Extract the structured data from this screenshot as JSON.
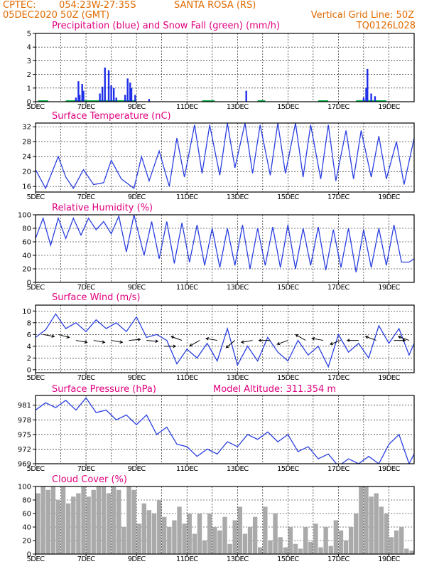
{
  "header": {
    "source": "CPTEC:",
    "location": "054:23W-27:35S",
    "station": "SANTA ROSA (RS)",
    "run": "05DEC2020 50Z (GMT)",
    "grid_note": "Vertical Grid Line: 50Z",
    "code": "TQ0126L028"
  },
  "colors": {
    "header": "#e06a00",
    "title": "#e0007f",
    "series": "#2a3fe0",
    "precip": "#1f2fe8",
    "snow": "#00b040",
    "cloud": "#aaaaaa"
  },
  "chart_data": [
    {
      "id": "precip",
      "type": "bar",
      "title": "Precipitation (blue) and Snow Fall (green) (mm/h)",
      "x_unit": "day (Dec 2020)",
      "xlim": [
        5,
        20
      ],
      "x_ticks": [
        "5DEC",
        "7DEC",
        "9DEC",
        "11DEC",
        "13DEC",
        "15DEC",
        "17DEC",
        "19DEC"
      ],
      "ylim": [
        0,
        5
      ],
      "y_ticks": [
        "0",
        "1",
        "2",
        "3",
        "4",
        "5"
      ],
      "grid": true,
      "series": [
        {
          "name": "Precipitation",
          "x": [
            6.6,
            6.7,
            6.75,
            6.85,
            6.9,
            7.55,
            7.65,
            7.75,
            7.9,
            8.0,
            8.1,
            8.2,
            8.55,
            8.65,
            8.75,
            8.8,
            8.95,
            9.5,
            13.35,
            18.0,
            18.1,
            18.15,
            18.3,
            18.45
          ],
          "values": [
            0.3,
            1.5,
            0.5,
            1.3,
            0.8,
            0.6,
            1.1,
            2.5,
            2.3,
            1.2,
            1.0,
            0.3,
            0.5,
            1.7,
            1.4,
            1.0,
            0.5,
            0.2,
            0.8,
            0.3,
            1.0,
            2.4,
            0.6,
            0.4
          ]
        },
        {
          "name": "Snow Fall",
          "x": [],
          "values": []
        }
      ]
    },
    {
      "id": "temperature",
      "type": "line",
      "title": "Surface Temperature (nC)",
      "xlim": [
        5,
        20
      ],
      "x_ticks": [
        "5DEC",
        "7DEC",
        "9DEC",
        "11DEC",
        "13DEC",
        "15DEC",
        "17DEC",
        "19DEC"
      ],
      "ylim": [
        14.5,
        33
      ],
      "y_ticks": [
        "16",
        "20",
        "24",
        "28",
        "32"
      ],
      "y_tick_values": [
        16,
        20,
        24,
        28,
        32
      ],
      "grid": true,
      "x": [
        5.0,
        5.4,
        5.9,
        6.2,
        6.5,
        6.9,
        7.3,
        7.7,
        8.0,
        8.4,
        8.9,
        9.2,
        9.5,
        9.9,
        10.3,
        10.6,
        10.9,
        11.3,
        11.6,
        11.9,
        12.3,
        12.6,
        12.9,
        13.3,
        13.6,
        13.9,
        14.3,
        14.6,
        14.9,
        15.3,
        15.6,
        15.9,
        16.3,
        16.6,
        16.9,
        17.3,
        17.6,
        17.9,
        18.3,
        18.6,
        18.9,
        19.3,
        19.6,
        20.0
      ],
      "values": [
        20.5,
        15.5,
        24.0,
        18.5,
        15.5,
        20.5,
        16.5,
        17.0,
        23.0,
        18.0,
        15.5,
        24.0,
        17.5,
        25.5,
        16.0,
        29.0,
        18.5,
        32.5,
        19.5,
        32.5,
        19.0,
        33.0,
        21.0,
        33.0,
        19.5,
        32.5,
        19.0,
        33.0,
        19.5,
        33.0,
        18.5,
        32.5,
        18.0,
        32.5,
        17.5,
        31.0,
        18.0,
        31.0,
        18.5,
        29.5,
        18.0,
        28.0,
        16.5,
        29.0
      ]
    },
    {
      "id": "humidity",
      "type": "line",
      "title": "Relative Humidity (%)",
      "xlim": [
        5,
        20
      ],
      "x_ticks": [
        "5DEC",
        "7DEC",
        "9DEC",
        "11DEC",
        "13DEC",
        "15DEC",
        "17DEC",
        "19DEC"
      ],
      "ylim": [
        0,
        100
      ],
      "y_ticks": [
        "0",
        "20",
        "40",
        "60",
        "80",
        "100"
      ],
      "grid": true,
      "x": [
        5.0,
        5.3,
        5.6,
        5.9,
        6.2,
        6.5,
        6.8,
        7.1,
        7.4,
        7.7,
        8.0,
        8.3,
        8.6,
        8.9,
        9.3,
        9.6,
        9.9,
        10.2,
        10.5,
        10.8,
        11.1,
        11.4,
        11.7,
        12.0,
        12.3,
        12.6,
        12.9,
        13.2,
        13.5,
        13.8,
        14.1,
        14.4,
        14.7,
        15.0,
        15.3,
        15.6,
        15.9,
        16.2,
        16.5,
        16.8,
        17.1,
        17.4,
        17.7,
        18.0,
        18.3,
        18.6,
        18.9,
        19.2,
        19.5,
        19.8,
        20.0
      ],
      "values": [
        65,
        95,
        55,
        95,
        65,
        95,
        70,
        95,
        78,
        90,
        72,
        98,
        45,
        100,
        40,
        90,
        35,
        90,
        28,
        88,
        30,
        85,
        25,
        80,
        22,
        80,
        25,
        85,
        20,
        80,
        25,
        82,
        22,
        85,
        20,
        80,
        25,
        82,
        18,
        78,
        22,
        80,
        15,
        78,
        22,
        80,
        25,
        85,
        30,
        30,
        35
      ]
    },
    {
      "id": "wind",
      "type": "line",
      "title": "Surface Wind (m/s)",
      "xlim": [
        5,
        20
      ],
      "x_ticks": [
        "5DEC",
        "7DEC",
        "9DEC",
        "11DEC",
        "13DEC",
        "15DEC",
        "17DEC",
        "19DEC"
      ],
      "ylim": [
        -0.5,
        11
      ],
      "y_ticks": [
        "0",
        "2",
        "4",
        "6",
        "8",
        "10"
      ],
      "y_tick_values": [
        0,
        2,
        4,
        6,
        8,
        10
      ],
      "grid": true,
      "x": [
        5.0,
        5.4,
        5.8,
        6.2,
        6.6,
        7.0,
        7.4,
        7.8,
        8.2,
        8.6,
        9.0,
        9.4,
        9.8,
        10.2,
        10.6,
        11.0,
        11.4,
        11.8,
        12.2,
        12.6,
        13.0,
        13.4,
        13.8,
        14.2,
        14.6,
        15.0,
        15.4,
        15.8,
        16.2,
        16.6,
        17.0,
        17.4,
        17.8,
        18.2,
        18.6,
        19.0,
        19.4,
        19.8,
        20.0
      ],
      "values": [
        5.5,
        6.8,
        9.5,
        7.0,
        8.0,
        6.5,
        8.5,
        7.0,
        8.0,
        6.5,
        9.0,
        5.5,
        6.0,
        5.0,
        1.0,
        3.5,
        2.0,
        4.5,
        1.5,
        7.0,
        0.8,
        4.0,
        1.5,
        5.5,
        3.0,
        1.5,
        5.0,
        2.5,
        4.0,
        0.5,
        6.0,
        3.0,
        4.5,
        2.0,
        7.5,
        4.5,
        7.0,
        2.5,
        4.5
      ],
      "arrows": {
        "x": [
          5.3,
          5.9,
          6.6,
          7.3,
          8.0,
          8.7,
          9.4,
          10.1,
          10.8,
          11.5,
          12.2,
          12.9,
          13.6,
          14.3,
          15.0,
          15.7,
          16.4,
          17.1,
          17.8,
          18.5,
          19.2,
          19.8
        ],
        "speed": [
          6,
          6,
          5,
          5,
          5,
          5,
          5,
          4,
          5,
          5,
          5,
          5,
          5,
          5,
          5,
          5,
          5,
          5,
          5,
          5,
          5,
          5
        ],
        "dir_deg": [
          100,
          105,
          100,
          100,
          100,
          85,
          95,
          90,
          290,
          240,
          280,
          230,
          260,
          270,
          250,
          300,
          280,
          250,
          270,
          290,
          90,
          290
        ]
      }
    },
    {
      "id": "pressure",
      "type": "line",
      "title": "Surface Pressure (hPa)",
      "annotation": "Model Altitude: 311.354 m",
      "xlim": [
        5,
        20
      ],
      "x_ticks": [
        "5DEC",
        "7DEC",
        "9DEC",
        "11DEC",
        "13DEC",
        "15DEC",
        "17DEC",
        "19DEC"
      ],
      "ylim": [
        969,
        983
      ],
      "y_ticks": [
        "969",
        "972",
        "975",
        "978",
        "981"
      ],
      "y_tick_values": [
        969,
        972,
        975,
        978,
        981
      ],
      "grid": true,
      "x": [
        5.0,
        5.4,
        5.8,
        6.2,
        6.6,
        7.0,
        7.4,
        7.8,
        8.2,
        8.6,
        9.0,
        9.4,
        9.8,
        10.2,
        10.6,
        11.0,
        11.4,
        11.8,
        12.2,
        12.6,
        13.0,
        13.4,
        13.8,
        14.2,
        14.6,
        15.0,
        15.4,
        15.8,
        16.2,
        16.6,
        17.0,
        17.4,
        17.8,
        18.2,
        18.6,
        19.0,
        19.4,
        19.8,
        20.0
      ],
      "values": [
        980,
        981.5,
        980.5,
        982,
        980,
        982.5,
        979.5,
        980,
        978,
        979,
        977,
        979,
        975,
        976.5,
        973,
        972.5,
        970.5,
        972,
        971,
        973.5,
        972.5,
        975,
        974,
        975.5,
        973.5,
        975,
        971.5,
        972.5,
        970,
        971,
        968.5,
        970,
        969,
        970.5,
        969,
        973,
        975,
        969,
        971
      ]
    },
    {
      "id": "cloud",
      "type": "bar",
      "title": "Cloud Cover (%)",
      "xlim": [
        5,
        20
      ],
      "x_ticks": [
        "5DEC",
        "7DEC",
        "9DEC",
        "11DEC",
        "13DEC",
        "15DEC",
        "17DEC",
        "19DEC"
      ],
      "ylim": [
        0,
        100
      ],
      "y_ticks": [
        "0",
        "20",
        "40",
        "60",
        "80",
        "100"
      ],
      "grid": true,
      "x": [
        5.1,
        5.3,
        5.5,
        5.7,
        5.9,
        6.1,
        6.3,
        6.5,
        6.7,
        6.9,
        7.1,
        7.3,
        7.5,
        7.7,
        7.9,
        8.1,
        8.3,
        8.5,
        8.7,
        8.9,
        9.1,
        9.3,
        9.5,
        9.7,
        9.9,
        10.1,
        10.3,
        10.5,
        10.7,
        10.9,
        11.1,
        11.3,
        11.5,
        11.7,
        11.9,
        12.1,
        12.3,
        12.5,
        12.7,
        12.9,
        13.1,
        13.3,
        13.5,
        13.7,
        13.9,
        14.1,
        14.3,
        14.5,
        14.7,
        14.9,
        15.1,
        15.3,
        15.5,
        15.7,
        15.9,
        16.1,
        16.3,
        16.5,
        16.7,
        16.9,
        17.1,
        17.3,
        17.5,
        17.7,
        17.9,
        18.1,
        18.3,
        18.5,
        18.7,
        18.9,
        19.1,
        19.3,
        19.5,
        19.7,
        19.9
      ],
      "values": [
        90,
        100,
        95,
        100,
        80,
        100,
        75,
        85,
        90,
        100,
        85,
        95,
        100,
        100,
        90,
        100,
        95,
        40,
        100,
        95,
        45,
        75,
        65,
        60,
        80,
        55,
        40,
        50,
        70,
        45,
        60,
        30,
        60,
        20,
        60,
        40,
        35,
        55,
        15,
        50,
        70,
        30,
        40,
        55,
        10,
        70,
        20,
        60,
        25,
        10,
        40,
        15,
        8,
        40,
        18,
        45,
        10,
        40,
        12,
        50,
        35,
        20,
        40,
        60,
        100,
        100,
        85,
        90,
        70,
        60,
        25,
        35,
        40,
        8,
        5
      ]
    }
  ]
}
